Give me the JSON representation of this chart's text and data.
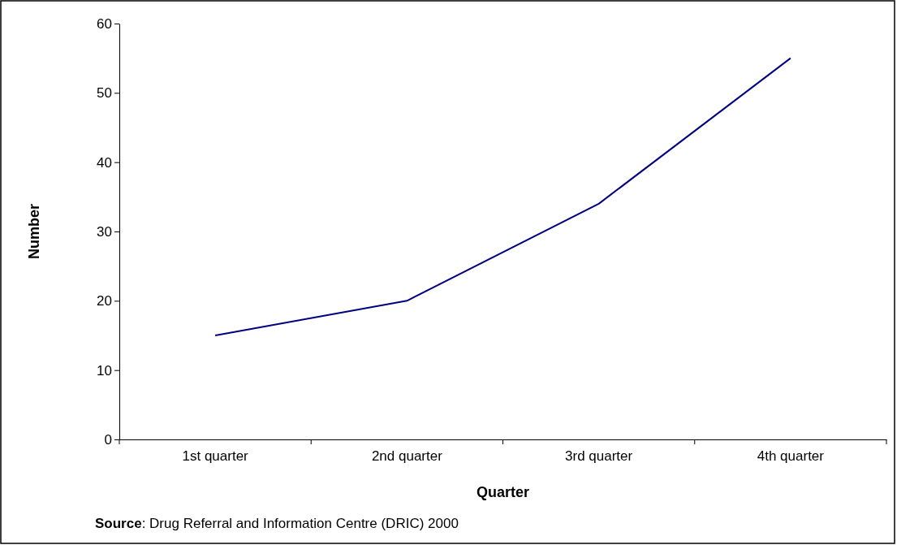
{
  "chart_data": {
    "type": "line",
    "xlabel": "Quarter",
    "ylabel": "Number",
    "categories": [
      "1st quarter",
      "2nd quarter",
      "3rd quarter",
      "4th quarter"
    ],
    "series": [
      {
        "color": "#000080",
        "values": [
          15,
          20,
          34,
          55
        ]
      }
    ],
    "ylim": [
      0,
      60
    ],
    "yticks": [
      0,
      10,
      20,
      30,
      40,
      50,
      60
    ],
    "grid": false,
    "annotations": [
      "Source: Drug Referral and Information Centre (DRIC) 2000"
    ]
  }
}
